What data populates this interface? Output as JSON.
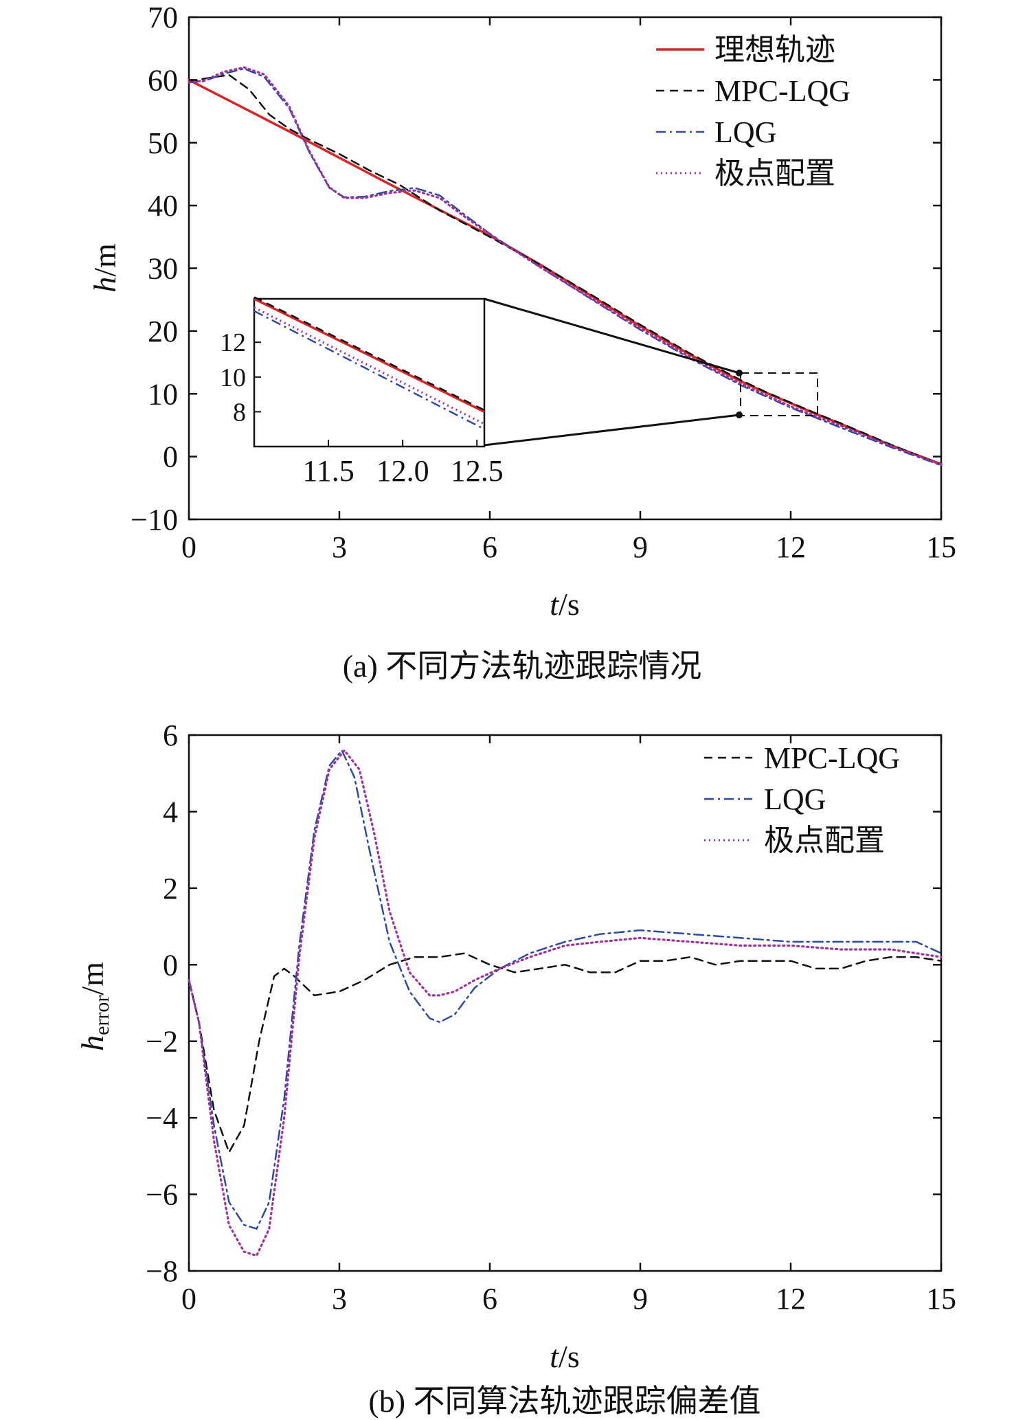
{
  "chart_data": [
    {
      "type": "line",
      "caption": "(a) 不同方法轨迹跟踪情况",
      "xlabel": "t/s",
      "ylabel": "h/m",
      "xlim": [
        0,
        15
      ],
      "ylim": [
        -10,
        70
      ],
      "xticks": [
        0,
        3,
        6,
        9,
        12,
        15
      ],
      "yticks": [
        -10,
        0,
        10,
        20,
        30,
        40,
        50,
        60,
        70
      ],
      "grid": false,
      "legend_position": "top-right",
      "colors": {
        "ideal": "#d62728",
        "mpc": "#111111",
        "lqg": "#2e4a9e",
        "pole": "#a0309a"
      },
      "series": [
        {
          "name": "理想轨迹",
          "style": "solid",
          "x": [
            0,
            1,
            2,
            3,
            4,
            5,
            6,
            7,
            8,
            9,
            10,
            11,
            11.5,
            12,
            12.5,
            13,
            14,
            15
          ],
          "y": [
            60,
            55.9,
            51.8,
            47.6,
            43.4,
            39.3,
            35.2,
            30.6,
            25.7,
            20.8,
            16.2,
            12.0,
            10.2,
            8.5,
            6.8,
            5.2,
            1.8,
            -1.2
          ]
        },
        {
          "name": "MPC-LQG",
          "style": "dashed",
          "x": [
            0,
            0.3,
            0.8,
            1.2,
            1.6,
            2.0,
            2.4,
            3.0,
            3.6,
            4.2,
            5,
            6,
            7,
            8,
            9,
            10,
            11,
            11.5,
            12,
            12.5,
            13,
            14,
            15
          ],
          "y": [
            59.6,
            60.2,
            60.8,
            58.5,
            54.5,
            52.2,
            50.5,
            48.2,
            45.6,
            43.3,
            39.2,
            35.0,
            30.6,
            25.9,
            21.0,
            16.4,
            12.2,
            10.3,
            8.6,
            6.9,
            5.3,
            1.9,
            -1.3
          ]
        },
        {
          "name": "LQG",
          "style": "dashdot",
          "x": [
            0,
            0.3,
            0.7,
            1.1,
            1.5,
            2.0,
            2.4,
            2.8,
            3.1,
            3.5,
            4.0,
            4.5,
            5.0,
            5.5,
            6,
            7,
            8,
            9,
            10,
            11,
            11.5,
            12,
            12.5,
            13,
            14,
            15
          ],
          "y": [
            59.6,
            59.8,
            61.0,
            61.8,
            60.5,
            55.5,
            48.5,
            42.8,
            41.3,
            41.4,
            42.3,
            42.8,
            41.6,
            38.5,
            35.5,
            30.2,
            25.2,
            20.2,
            15.6,
            11.4,
            9.6,
            7.8,
            6.2,
            4.6,
            1.5,
            -1.4
          ]
        },
        {
          "name": "极点配置",
          "style": "dotted",
          "x": [
            0,
            0.3,
            0.7,
            1.1,
            1.5,
            2.0,
            2.4,
            2.8,
            3.1,
            3.5,
            4.0,
            4.5,
            5.0,
            5.5,
            6,
            7,
            8,
            9,
            10,
            11,
            11.5,
            12,
            12.5,
            13,
            14,
            15
          ],
          "y": [
            59.6,
            59.9,
            61.3,
            62.0,
            60.9,
            55.8,
            48.7,
            42.9,
            41.2,
            41.2,
            42.0,
            42.4,
            41.2,
            38.2,
            35.4,
            30.2,
            25.3,
            20.4,
            15.8,
            11.6,
            9.8,
            8.0,
            6.4,
            4.9,
            1.7,
            -1.3
          ]
        }
      ],
      "inset": {
        "xlim": [
          11,
          12.55
        ],
        "ylim": [
          6,
          14.5
        ],
        "xticks": [
          "11.5",
          "12.0",
          "12.5"
        ],
        "xtick_values": [
          11.5,
          12.0,
          12.5
        ],
        "yticks": [
          "8",
          "10",
          "12"
        ],
        "ytick_values": [
          8,
          10,
          12
        ],
        "series": [
          {
            "name": "理想轨迹",
            "x": [
              11,
              12.55
            ],
            "y": [
              14.5,
              8.0
            ]
          },
          {
            "name": "MPC-LQG",
            "x": [
              11,
              12.55
            ],
            "y": [
              14.6,
              8.1
            ]
          },
          {
            "name": "LQG",
            "x": [
              11,
              12.55
            ],
            "y": [
              13.8,
              7.0
            ]
          },
          {
            "name": "极点配置",
            "x": [
              11,
              12.55
            ],
            "y": [
              14.0,
              7.3
            ]
          }
        ]
      }
    },
    {
      "type": "line",
      "caption": "(b) 不同算法轨迹跟踪偏差值",
      "xlabel": "t/s",
      "ylabel": "herror/m",
      "ylabel_base": "h",
      "ylabel_sub": "error",
      "ylabel_unit": "/m",
      "xlim": [
        0,
        15
      ],
      "ylim": [
        -8,
        6
      ],
      "xticks": [
        0,
        3,
        6,
        9,
        12,
        15
      ],
      "yticks": [
        -8,
        -6,
        -4,
        -2,
        0,
        2,
        4,
        6
      ],
      "grid": false,
      "legend_position": "top-right",
      "colors": {
        "mpc": "#111111",
        "lqg": "#2e4a9e",
        "pole": "#a0309a"
      },
      "series": [
        {
          "name": "MPC-LQG",
          "style": "dashed",
          "x": [
            0,
            0.2,
            0.5,
            0.8,
            1.1,
            1.4,
            1.7,
            1.9,
            2.1,
            2.5,
            3.0,
            3.5,
            4.0,
            4.5,
            5.0,
            5.5,
            6.0,
            6.5,
            7.0,
            7.5,
            8.0,
            8.5,
            9.0,
            9.5,
            10.0,
            10.5,
            11.0,
            11.5,
            12.0,
            12.5,
            13.0,
            13.5,
            14.0,
            14.5,
            15.0
          ],
          "y": [
            -0.4,
            -1.5,
            -3.8,
            -4.9,
            -4.2,
            -2.0,
            -0.3,
            -0.1,
            -0.3,
            -0.8,
            -0.7,
            -0.4,
            0.0,
            0.2,
            0.2,
            0.3,
            0.0,
            -0.2,
            -0.1,
            0.0,
            -0.2,
            -0.2,
            0.1,
            0.1,
            0.2,
            0.0,
            0.1,
            0.1,
            0.1,
            -0.1,
            -0.1,
            0.1,
            0.2,
            0.2,
            0.1
          ]
        },
        {
          "name": "LQG",
          "style": "dashdot",
          "x": [
            0,
            0.2,
            0.5,
            0.8,
            1.1,
            1.35,
            1.6,
            1.9,
            2.2,
            2.5,
            2.8,
            3.05,
            3.3,
            3.6,
            4.0,
            4.4,
            4.8,
            5.0,
            5.3,
            5.7,
            6.2,
            6.8,
            7.5,
            8.2,
            9.0,
            10.0,
            11.0,
            12.0,
            13.0,
            14.0,
            14.5,
            15.0
          ],
          "y": [
            -0.4,
            -1.5,
            -4.2,
            -6.2,
            -6.8,
            -6.9,
            -6.2,
            -3.5,
            0.5,
            3.5,
            5.2,
            5.6,
            4.9,
            3.0,
            0.6,
            -0.7,
            -1.4,
            -1.5,
            -1.3,
            -0.6,
            -0.1,
            0.3,
            0.6,
            0.8,
            0.9,
            0.8,
            0.7,
            0.6,
            0.6,
            0.6,
            0.6,
            0.3
          ]
        },
        {
          "name": "极点配置",
          "style": "dotted",
          "x": [
            0,
            0.2,
            0.5,
            0.8,
            1.1,
            1.35,
            1.6,
            1.9,
            2.2,
            2.5,
            2.8,
            3.1,
            3.4,
            3.7,
            4.0,
            4.4,
            4.8,
            5.0,
            5.3,
            5.7,
            6.2,
            6.8,
            7.5,
            8.2,
            9.0,
            10.0,
            11.0,
            12.0,
            13.0,
            14.0,
            14.5,
            15.0
          ],
          "y": [
            -0.4,
            -1.5,
            -4.6,
            -6.8,
            -7.5,
            -7.6,
            -6.9,
            -4.0,
            0.2,
            3.3,
            5.1,
            5.6,
            5.1,
            3.4,
            1.4,
            -0.2,
            -0.8,
            -0.8,
            -0.7,
            -0.4,
            -0.1,
            0.2,
            0.5,
            0.6,
            0.7,
            0.6,
            0.5,
            0.5,
            0.4,
            0.4,
            0.3,
            0.2
          ]
        }
      ]
    }
  ]
}
